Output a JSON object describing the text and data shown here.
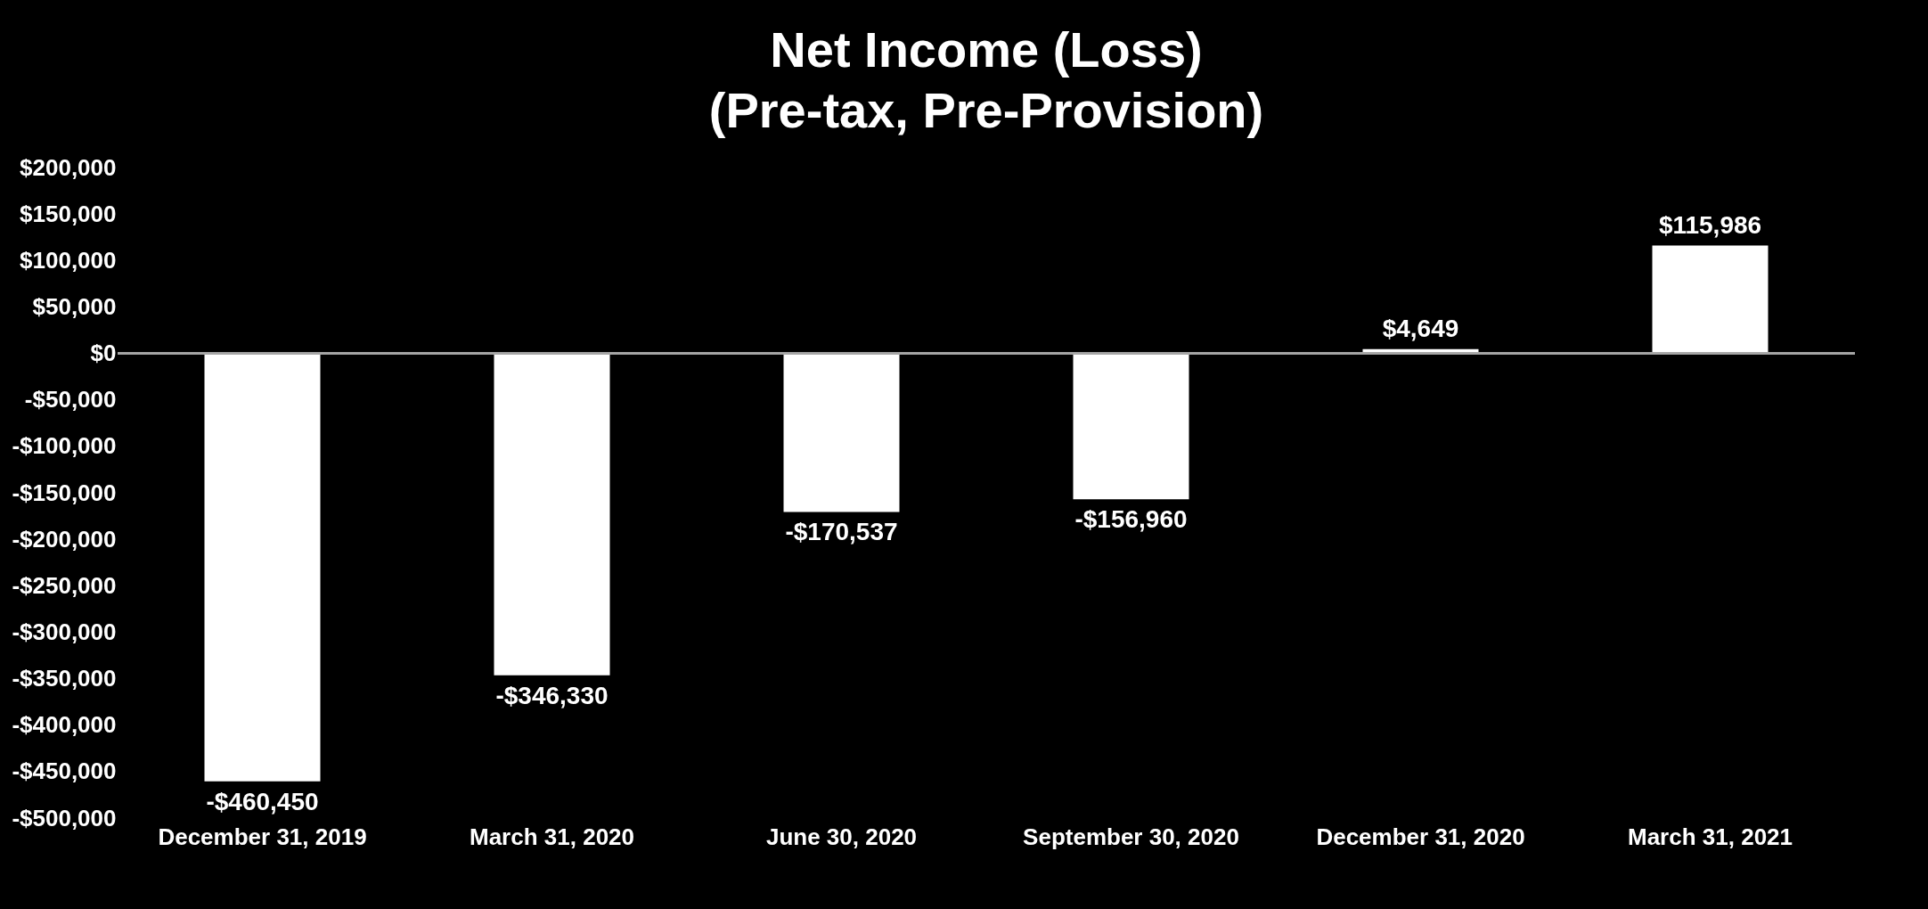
{
  "chart_data": {
    "type": "bar",
    "title": "Net Income (Loss)",
    "subtitle": "(Pre-tax, Pre-Provision)",
    "categories": [
      "December 31, 2019",
      "March 31, 2020",
      "June 30, 2020",
      "September 30, 2020",
      "December 31, 2020",
      "March 31, 2021"
    ],
    "values": [
      -460450,
      -346330,
      -170537,
      -156960,
      4649,
      115986
    ],
    "value_labels": [
      "-$460,450",
      "-$346,330",
      "-$170,537",
      "-$156,960",
      "$4,649",
      "$115,986"
    ],
    "ylim": [
      -500000,
      200000
    ],
    "yticks": [
      {
        "value": -500000,
        "label": "-$500,000"
      },
      {
        "value": -450000,
        "label": "-$450,000"
      },
      {
        "value": -400000,
        "label": "-$400,000"
      },
      {
        "value": -350000,
        "label": "-$350,000"
      },
      {
        "value": -300000,
        "label": "-$300,000"
      },
      {
        "value": -250000,
        "label": "-$250,000"
      },
      {
        "value": -200000,
        "label": "-$200,000"
      },
      {
        "value": -150000,
        "label": "-$150,000"
      },
      {
        "value": -100000,
        "label": "-$100,000"
      },
      {
        "value": -50000,
        "label": "-$50,000"
      },
      {
        "value": 0,
        "label": "$0"
      },
      {
        "value": 50000,
        "label": "$50,000"
      },
      {
        "value": 100000,
        "label": "$100,000"
      },
      {
        "value": 150000,
        "label": "$150,000"
      },
      {
        "value": 200000,
        "label": "$200,000"
      }
    ],
    "color": "#ffffff"
  }
}
